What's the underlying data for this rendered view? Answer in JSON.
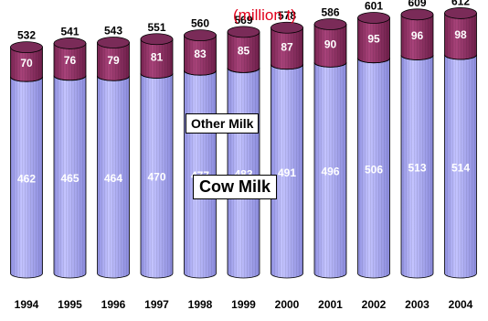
{
  "chart_data": {
    "type": "bar",
    "stacked": true,
    "unit_label": "(million t)",
    "categories": [
      "1994",
      "1995",
      "1996",
      "1997",
      "1998",
      "1999",
      "2000",
      "2001",
      "2002",
      "2003",
      "2004"
    ],
    "series": [
      {
        "name": "Cow Milk",
        "values": [
          462,
          465,
          464,
          470,
          477,
          483,
          491,
          496,
          506,
          513,
          514
        ],
        "color": "#a8a8f0"
      },
      {
        "name": "Other Milk",
        "values": [
          70,
          76,
          79,
          81,
          83,
          85,
          87,
          90,
          95,
          96,
          98
        ],
        "color": "#8e2f62"
      }
    ],
    "totals": [
      532,
      541,
      543,
      551,
      560,
      569,
      578,
      586,
      601,
      609,
      612
    ]
  }
}
